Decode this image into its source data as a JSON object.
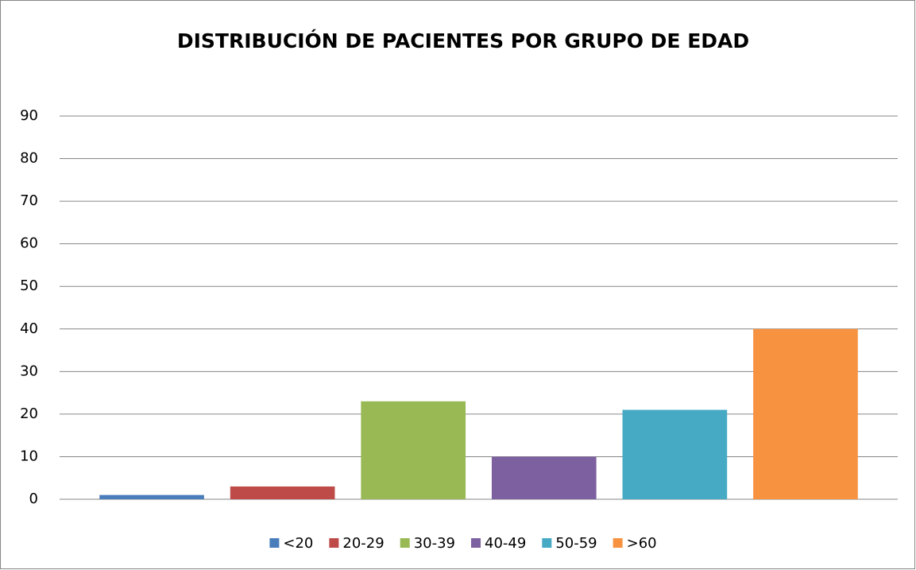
{
  "chart_data": {
    "type": "bar",
    "title": "DISTRIBUCIÓN DE PACIENTES POR GRUPO DE EDAD",
    "categories": [
      null
    ],
    "series": [
      {
        "name": "<20",
        "color": "#4a7ebb",
        "values": [
          1
        ]
      },
      {
        "name": "20-29",
        "color": "#be4b48",
        "values": [
          3
        ]
      },
      {
        "name": "30-39",
        "color": "#98b954",
        "values": [
          23
        ]
      },
      {
        "name": "40-49",
        "color": "#7d60a0",
        "values": [
          10
        ]
      },
      {
        "name": "50-59",
        "color": "#46aac5",
        "values": [
          21
        ]
      },
      {
        "name": ">60",
        "color": "#f69240",
        "values": [
          40
        ]
      }
    ],
    "ylim": [
      0,
      90
    ],
    "yticks": [
      0,
      10,
      20,
      30,
      40,
      50,
      60,
      70,
      80,
      90
    ],
    "grid": true,
    "legend": "bottom"
  }
}
